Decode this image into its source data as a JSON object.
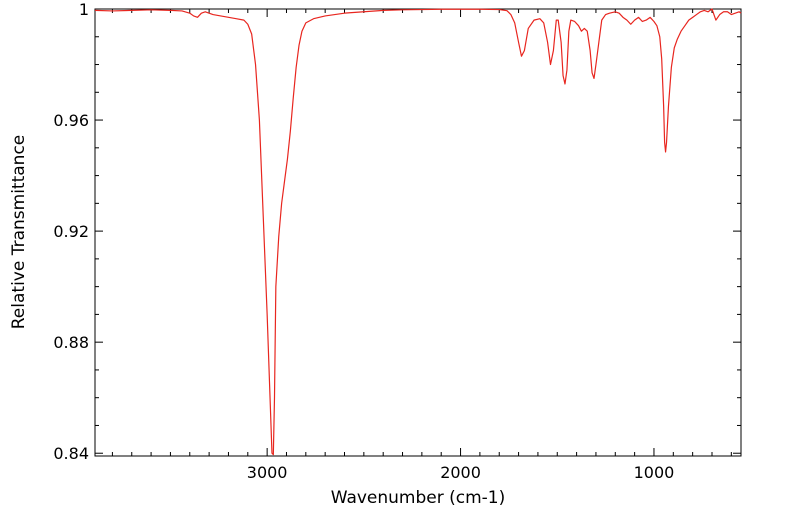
{
  "chart_data": {
    "type": "line",
    "title": "",
    "xlabel": "Wavenumber (cm-1)",
    "ylabel": "Relative Transmittance",
    "xlim": [
      3890,
      550
    ],
    "ylim": [
      0.839,
      1.0
    ],
    "x_reversed": true,
    "grid": false,
    "legend": "none",
    "x_ticks": [
      3000,
      2000,
      1000
    ],
    "x_tick_labels": [
      "3000",
      "2000",
      "1000"
    ],
    "y_ticks": [
      0.84,
      0.88,
      0.92,
      0.96,
      1.0
    ],
    "y_tick_labels": [
      "0.84",
      "0.88",
      "0.92",
      "0.96",
      "1"
    ],
    "series": [
      {
        "color": "#e8261f",
        "points": [
          [
            3890,
            0.9995
          ],
          [
            3800,
            0.9993
          ],
          [
            3700,
            0.9995
          ],
          [
            3600,
            0.9997
          ],
          [
            3500,
            0.9995
          ],
          [
            3440,
            0.9993
          ],
          [
            3400,
            0.9985
          ],
          [
            3380,
            0.9975
          ],
          [
            3360,
            0.997
          ],
          [
            3340,
            0.9985
          ],
          [
            3320,
            0.999
          ],
          [
            3280,
            0.998
          ],
          [
            3240,
            0.9975
          ],
          [
            3200,
            0.997
          ],
          [
            3160,
            0.9965
          ],
          [
            3120,
            0.996
          ],
          [
            3100,
            0.9945
          ],
          [
            3080,
            0.991
          ],
          [
            3060,
            0.98
          ],
          [
            3040,
            0.96
          ],
          [
            3020,
            0.925
          ],
          [
            3000,
            0.89
          ],
          [
            2985,
            0.86
          ],
          [
            2975,
            0.84
          ],
          [
            2968,
            0.8395
          ],
          [
            2962,
            0.86
          ],
          [
            2955,
            0.9
          ],
          [
            2940,
            0.918
          ],
          [
            2925,
            0.93
          ],
          [
            2910,
            0.938
          ],
          [
            2895,
            0.946
          ],
          [
            2880,
            0.956
          ],
          [
            2865,
            0.968
          ],
          [
            2850,
            0.979
          ],
          [
            2835,
            0.987
          ],
          [
            2820,
            0.992
          ],
          [
            2800,
            0.995
          ],
          [
            2760,
            0.9965
          ],
          [
            2700,
            0.9975
          ],
          [
            2600,
            0.9985
          ],
          [
            2500,
            0.999
          ],
          [
            2400,
            0.9995
          ],
          [
            2300,
            0.9997
          ],
          [
            2200,
            0.9998
          ],
          [
            2100,
            0.9999
          ],
          [
            2000,
            0.9999
          ],
          [
            1900,
            0.9999
          ],
          [
            1800,
            0.9998
          ],
          [
            1760,
            0.9994
          ],
          [
            1740,
            0.998
          ],
          [
            1720,
            0.995
          ],
          [
            1700,
            0.988
          ],
          [
            1685,
            0.983
          ],
          [
            1670,
            0.985
          ],
          [
            1650,
            0.993
          ],
          [
            1620,
            0.996
          ],
          [
            1590,
            0.9965
          ],
          [
            1570,
            0.995
          ],
          [
            1550,
            0.988
          ],
          [
            1535,
            0.98
          ],
          [
            1520,
            0.985
          ],
          [
            1505,
            0.996
          ],
          [
            1495,
            0.996
          ],
          [
            1480,
            0.988
          ],
          [
            1470,
            0.976
          ],
          [
            1460,
            0.973
          ],
          [
            1450,
            0.978
          ],
          [
            1440,
            0.992
          ],
          [
            1430,
            0.996
          ],
          [
            1410,
            0.9955
          ],
          [
            1390,
            0.994
          ],
          [
            1375,
            0.992
          ],
          [
            1360,
            0.993
          ],
          [
            1345,
            0.992
          ],
          [
            1330,
            0.985
          ],
          [
            1320,
            0.977
          ],
          [
            1310,
            0.975
          ],
          [
            1300,
            0.98
          ],
          [
            1285,
            0.988
          ],
          [
            1270,
            0.996
          ],
          [
            1250,
            0.998
          ],
          [
            1230,
            0.9985
          ],
          [
            1200,
            0.999
          ],
          [
            1180,
            0.9985
          ],
          [
            1160,
            0.997
          ],
          [
            1140,
            0.996
          ],
          [
            1120,
            0.9945
          ],
          [
            1100,
            0.996
          ],
          [
            1080,
            0.997
          ],
          [
            1060,
            0.9955
          ],
          [
            1040,
            0.996
          ],
          [
            1020,
            0.997
          ],
          [
            1000,
            0.9955
          ],
          [
            985,
            0.994
          ],
          [
            970,
            0.99
          ],
          [
            960,
            0.982
          ],
          [
            950,
            0.965
          ],
          [
            945,
            0.952
          ],
          [
            940,
            0.9485
          ],
          [
            935,
            0.952
          ],
          [
            925,
            0.965
          ],
          [
            910,
            0.979
          ],
          [
            895,
            0.986
          ],
          [
            880,
            0.989
          ],
          [
            860,
            0.992
          ],
          [
            840,
            0.994
          ],
          [
            820,
            0.996
          ],
          [
            800,
            0.997
          ],
          [
            780,
            0.998
          ],
          [
            760,
            0.999
          ],
          [
            740,
            0.9995
          ],
          [
            720,
            0.999
          ],
          [
            700,
            1.0
          ],
          [
            680,
            0.996
          ],
          [
            660,
            0.998
          ],
          [
            640,
            0.999
          ],
          [
            620,
            0.999
          ],
          [
            600,
            0.998
          ],
          [
            580,
            0.9985
          ],
          [
            560,
            0.999
          ],
          [
            550,
            0.9985
          ]
        ]
      }
    ]
  }
}
